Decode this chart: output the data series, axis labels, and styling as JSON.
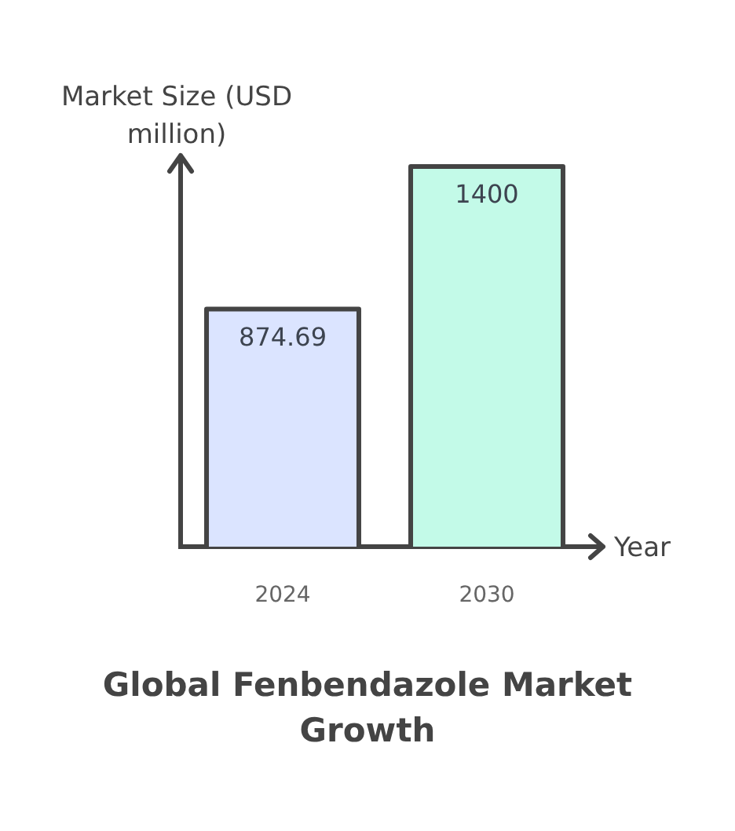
{
  "chart_data": {
    "type": "bar",
    "title": "Global Fenbendazole Market Growth",
    "xlabel": "Year",
    "ylabel": "Market Size (USD million)",
    "categories": [
      "2024",
      "2030"
    ],
    "values": [
      874.69,
      1400
    ],
    "colors": [
      "#dbe4ff",
      "#c3fae8"
    ],
    "data_labels": true,
    "tick_labels": "x"
  }
}
